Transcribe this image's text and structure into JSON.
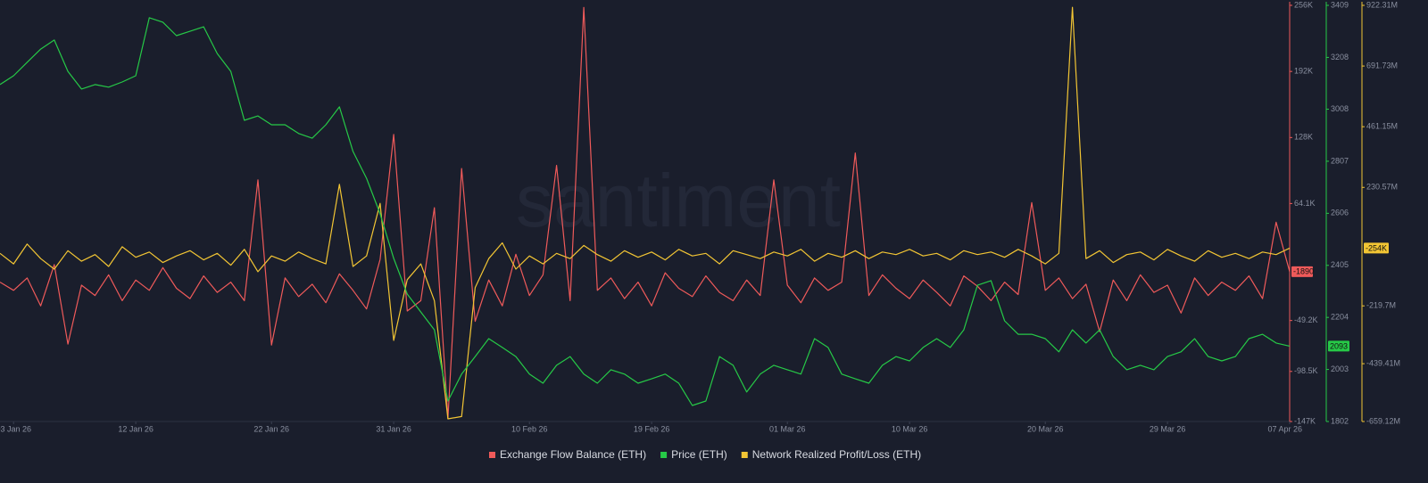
{
  "chart_data": {
    "type": "line",
    "watermark": "santiment",
    "x": [
      "2026-01-02",
      "2026-01-03",
      "2026-01-04",
      "2026-01-05",
      "2026-01-06",
      "2026-01-07",
      "2026-01-08",
      "2026-01-09",
      "2026-01-10",
      "2026-01-11",
      "2026-01-12",
      "2026-01-13",
      "2026-01-14",
      "2026-01-15",
      "2026-01-16",
      "2026-01-17",
      "2026-01-18",
      "2026-01-19",
      "2026-01-20",
      "2026-01-21",
      "2026-01-22",
      "2026-01-23",
      "2026-01-24",
      "2026-01-25",
      "2026-01-26",
      "2026-01-27",
      "2026-01-28",
      "2026-01-29",
      "2026-01-30",
      "2026-01-31",
      "2026-02-01",
      "2026-02-02",
      "2026-02-03",
      "2026-02-04",
      "2026-02-05",
      "2026-02-06",
      "2026-02-07",
      "2026-02-08",
      "2026-02-09",
      "2026-02-10",
      "2026-02-11",
      "2026-02-12",
      "2026-02-13",
      "2026-02-14",
      "2026-02-15",
      "2026-02-16",
      "2026-02-17",
      "2026-02-18",
      "2026-02-19",
      "2026-02-20",
      "2026-02-21",
      "2026-02-22",
      "2026-02-23",
      "2026-02-24",
      "2026-02-25",
      "2026-02-26",
      "2026-02-27",
      "2026-02-28",
      "2026-03-01",
      "2026-03-02",
      "2026-03-03",
      "2026-03-04",
      "2026-03-05",
      "2026-03-06",
      "2026-03-07",
      "2026-03-08",
      "2026-03-09",
      "2026-03-10",
      "2026-03-11",
      "2026-03-12",
      "2026-03-13",
      "2026-03-14",
      "2026-03-15",
      "2026-03-16",
      "2026-03-17",
      "2026-03-18",
      "2026-03-19",
      "2026-03-20",
      "2026-03-21",
      "2026-03-22",
      "2026-03-23",
      "2026-03-24",
      "2026-03-25",
      "2026-03-26",
      "2026-03-27",
      "2026-03-28",
      "2026-03-29",
      "2026-03-30",
      "2026-03-31",
      "2026-04-01",
      "2026-04-02",
      "2026-04-03",
      "2026-04-04",
      "2026-04-05",
      "2026-04-06",
      "2026-04-07"
    ],
    "xlim": [
      "2026-01-02",
      "2026-04-07"
    ],
    "xticks": [
      {
        "value": "2026-01-03",
        "label": "03 Jan 26"
      },
      {
        "value": "2026-01-12",
        "label": "12 Jan 26"
      },
      {
        "value": "2026-01-22",
        "label": "22 Jan 26"
      },
      {
        "value": "2026-01-31",
        "label": "31 Jan 26"
      },
      {
        "value": "2026-02-10",
        "label": "10 Feb 26"
      },
      {
        "value": "2026-02-19",
        "label": "19 Feb 26"
      },
      {
        "value": "2026-03-01",
        "label": "01 Mar 26"
      },
      {
        "value": "2026-03-10",
        "label": "10 Mar 26"
      },
      {
        "value": "2026-03-20",
        "label": "20 Mar 26"
      },
      {
        "value": "2026-03-29",
        "label": "29 Mar 26"
      },
      {
        "value": "2026-04-07",
        "label": "07 Apr 26"
      }
    ],
    "ylim": [
      -147000,
      256000
    ],
    "yticks": [
      {
        "value": 256000,
        "label": "256K"
      },
      {
        "value": 192000,
        "label": "192K"
      },
      {
        "value": 128000,
        "label": "128K"
      },
      {
        "value": 64100,
        "label": "64.1K"
      },
      {
        "value": -49200,
        "label": "-49.2K"
      },
      {
        "value": -98500,
        "label": "-98.5K"
      },
      {
        "value": -147000,
        "label": "-147K"
      }
    ],
    "y2lim": [
      1802,
      3409
    ],
    "y2ticks": [
      3409,
      3208,
      3008,
      2807,
      2606,
      2405,
      2204,
      2003,
      1802
    ],
    "y3lim": [
      -659120000,
      922310000
    ],
    "y3ticks": [
      {
        "value": 922310000,
        "label": "922.31M"
      },
      {
        "value": 691730000,
        "label": "691.73M"
      },
      {
        "value": 461150000,
        "label": "461.15M"
      },
      {
        "value": 230570000,
        "label": "230.57M"
      },
      {
        "value": -219700000,
        "label": "-219.7M"
      },
      {
        "value": -439410000,
        "label": "-439.41M"
      },
      {
        "value": -659120000,
        "label": "-659.12M"
      }
    ],
    "series": [
      {
        "name": "Exchange Flow Balance (ETH)",
        "color": "#ef5a5a",
        "axis": "y",
        "last_label": "-1890",
        "values": [
          -12000,
          -20000,
          -8000,
          -35000,
          5000,
          -72000,
          -15000,
          -25000,
          -5000,
          -30000,
          -10000,
          -20000,
          2000,
          -18000,
          -28000,
          -6000,
          -22000,
          -12000,
          -30000,
          87000,
          -73000,
          -8000,
          -26000,
          -14000,
          -32000,
          -4000,
          -20000,
          -38000,
          10000,
          131000,
          -40000,
          -30000,
          60000,
          -144000,
          98000,
          -50000,
          -10000,
          -35000,
          15000,
          -25000,
          -5000,
          101000,
          -30000,
          254000,
          -20000,
          -8000,
          -28000,
          -12000,
          -35000,
          -3000,
          -18000,
          -26000,
          -6000,
          -22000,
          -30000,
          -10000,
          -25000,
          87000,
          -15000,
          -32000,
          -8000,
          -20000,
          -12000,
          113000,
          -25000,
          -5000,
          -18000,
          -28000,
          -10000,
          -22000,
          -35000,
          -6000,
          -16000,
          -30000,
          -12000,
          -24000,
          65000,
          -20000,
          -8000,
          -28000,
          -14000,
          -60000,
          -10000,
          -30000,
          -5000,
          -22000,
          -15000,
          -42000,
          -8000,
          -25000,
          -12000,
          -20000,
          -6000,
          -28000,
          46000,
          -1890
        ]
      },
      {
        "name": "Price (ETH)",
        "color": "#26c947",
        "axis": "y2",
        "last_label": "2093",
        "values": [
          3103,
          3137,
          3189,
          3240,
          3275,
          3154,
          3086,
          3103,
          3093,
          3113,
          3137,
          3361,
          3344,
          3292,
          3309,
          3326,
          3223,
          3154,
          2965,
          2982,
          2948,
          2948,
          2914,
          2896,
          2948,
          3017,
          2845,
          2741,
          2604,
          2432,
          2294,
          2225,
          2156,
          1881,
          1985,
          2053,
          2122,
          2088,
          2053,
          1985,
          1950,
          2019,
          2053,
          1985,
          1950,
          2002,
          1985,
          1950,
          1967,
          1985,
          1950,
          1864,
          1881,
          2053,
          2019,
          1916,
          1985,
          2019,
          2002,
          1985,
          2122,
          2088,
          1985,
          1967,
          1950,
          2019,
          2053,
          2036,
          2088,
          2122,
          2088,
          2156,
          2328,
          2346,
          2191,
          2139,
          2139,
          2122,
          2071,
          2156,
          2105,
          2156,
          2053,
          2002,
          2019,
          2002,
          2053,
          2071,
          2122,
          2053,
          2036,
          2053,
          2122,
          2139,
          2105,
          2093
        ]
      },
      {
        "name": "Network Realized Profit/Loss (ETH)",
        "color": "#f2c534",
        "axis": "y3",
        "last_label": "-254K",
        "values": [
          -20000000,
          -60000000,
          15000000,
          -40000000,
          -80000000,
          -10000000,
          -50000000,
          -25000000,
          -70000000,
          5000000,
          -35000000,
          -15000000,
          -55000000,
          -30000000,
          -10000000,
          -45000000,
          -20000000,
          -65000000,
          -5000000,
          -90000000,
          -30000000,
          -50000000,
          -15000000,
          -40000000,
          -60000000,
          242000000,
          -70000000,
          -30000000,
          170000000,
          -351000000,
          -120000000,
          -60000000,
          -200000000,
          -649000000,
          -640000000,
          -150000000,
          -40000000,
          20000000,
          -80000000,
          -30000000,
          -60000000,
          -20000000,
          -40000000,
          10000000,
          -25000000,
          -50000000,
          -10000000,
          -35000000,
          -15000000,
          -45000000,
          -5000000,
          -30000000,
          -20000000,
          -60000000,
          -10000000,
          -25000000,
          -40000000,
          -15000000,
          -30000000,
          -5000000,
          -50000000,
          -20000000,
          -35000000,
          -10000000,
          -40000000,
          -15000000,
          -25000000,
          -5000000,
          -30000000,
          -20000000,
          -45000000,
          -10000000,
          -25000000,
          -15000000,
          -35000000,
          -5000000,
          -30000000,
          -60000000,
          -20000000,
          915000000,
          -40000000,
          -10000000,
          -55000000,
          -25000000,
          -15000000,
          -45000000,
          -5000000,
          -30000000,
          -50000000,
          -10000000,
          -35000000,
          -20000000,
          -40000000,
          -15000000,
          -25000000,
          -254000
        ]
      }
    ]
  }
}
